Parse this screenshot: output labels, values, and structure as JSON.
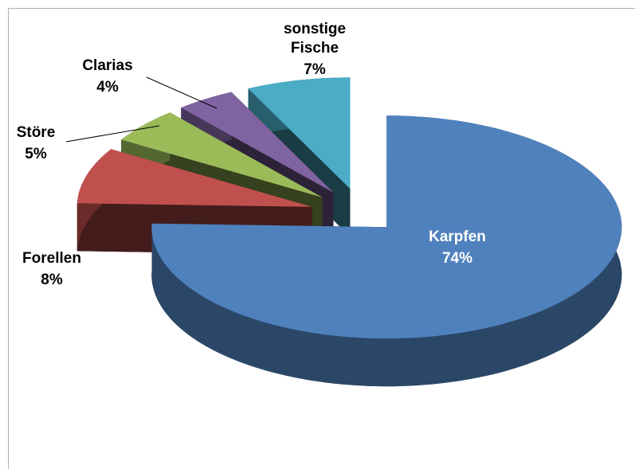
{
  "chart_data": {
    "type": "pie3d",
    "categories": [
      "Karpfen",
      "Forellen",
      "Störe",
      "Clarias",
      "sonstige Fische"
    ],
    "values": [
      74,
      8,
      5,
      4,
      7
    ],
    "value_labels": [
      "74%",
      "8%",
      "5%",
      "4%",
      "7%"
    ],
    "colors": [
      "#4f81bd",
      "#c0504d",
      "#9bbb59",
      "#8064a2",
      "#4bacc6"
    ]
  }
}
